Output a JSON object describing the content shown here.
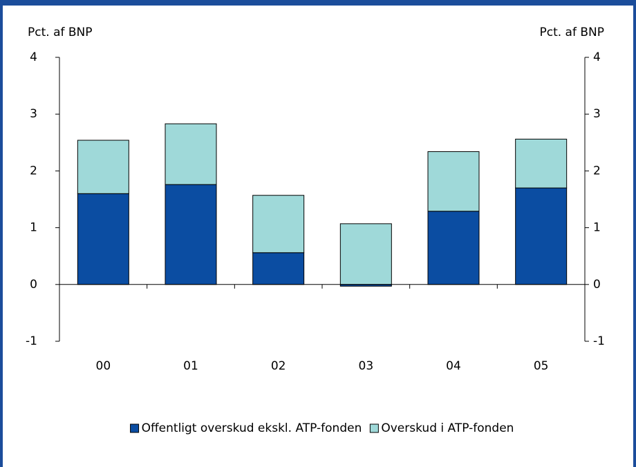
{
  "chart_data": {
    "type": "bar",
    "stacked": true,
    "y_label": "Pct. af BNP",
    "y2_label": "Pct. af BNP",
    "categories": [
      "00",
      "01",
      "02",
      "03",
      "04",
      "05"
    ],
    "series": [
      {
        "name": "Offentligt overskud ekskl. ATP-fonden",
        "color": "#0b4da2",
        "values": [
          1.6,
          1.76,
          0.56,
          -0.03,
          1.29,
          1.7
        ]
      },
      {
        "name": "Overskud i ATP-fonden",
        "color": "#9fd9d9",
        "values": [
          0.94,
          1.07,
          1.01,
          1.07,
          1.05,
          0.86
        ]
      }
    ],
    "ylim": [
      -1,
      4
    ],
    "yticks": [
      -1,
      0,
      1,
      2,
      3,
      4
    ],
    "y2lim": [
      -1,
      4
    ],
    "y2ticks": [
      -1,
      0,
      1,
      2,
      3,
      4
    ],
    "grid": false,
    "legend": "bottom"
  }
}
